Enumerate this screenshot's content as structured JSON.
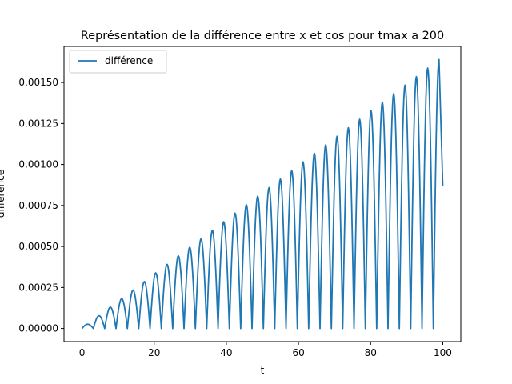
{
  "chart_data": {
    "type": "line",
    "title": "Représentation de la différence entre x et cos pour tmax a 200",
    "xlabel": "t",
    "ylabel": "différence",
    "xlim": [
      -5,
      105
    ],
    "ylim": [
      -8e-05,
      0.00172
    ],
    "xticks": [
      0,
      20,
      40,
      60,
      80,
      100
    ],
    "xtick_labels": [
      "0",
      "20",
      "40",
      "60",
      "80",
      "100"
    ],
    "yticks": [
      0,
      0.00025,
      0.0005,
      0.00075,
      0.001,
      0.00125,
      0.0015
    ],
    "ytick_labels": [
      "0.00000",
      "0.00025",
      "0.00050",
      "0.00075",
      "0.00100",
      "0.00125",
      "0.00150"
    ],
    "grid": false,
    "legend_position": "upper-left",
    "series": [
      {
        "name": "différence",
        "color": "#1f77b4",
        "x": [
          0,
          1.57,
          3.14,
          4.71,
          6.28,
          7.85,
          9.42,
          11.0,
          12.57,
          14.14,
          15.71,
          17.28,
          18.85,
          20.42,
          21.99,
          23.56,
          25.13,
          26.7,
          28.27,
          29.85,
          31.42,
          32.99,
          34.56,
          36.13,
          37.7,
          39.27,
          40.84,
          42.41,
          43.98,
          45.55,
          47.12,
          48.69,
          50.27,
          51.84,
          53.41,
          54.98,
          56.55,
          58.12,
          59.69,
          61.26,
          62.83,
          64.4,
          65.97,
          67.54,
          69.12,
          70.69,
          72.26,
          73.83,
          75.4,
          76.97,
          78.54,
          80.11,
          81.68,
          83.25,
          84.82,
          86.39,
          87.96,
          89.54,
          91.11,
          92.68,
          94.25,
          95.82,
          97.39,
          98.96,
          100
        ],
        "y": [
          0,
          2.6e-05,
          0,
          7.8e-05,
          0,
          0.00013,
          0,
          0.000182,
          0,
          0.000234,
          0,
          0.000286,
          0,
          0.000339,
          0,
          0.000391,
          0,
          0.000443,
          0,
          0.000495,
          0,
          0.000547,
          0,
          0.000599,
          0,
          0.000651,
          0,
          0.000703,
          0,
          0.000755,
          0,
          0.000807,
          0,
          0.000859,
          0,
          0.000911,
          0,
          0.000963,
          0,
          0.001016,
          0,
          0.001068,
          0,
          0.00112,
          0,
          0.001172,
          0,
          0.001224,
          0,
          0.001276,
          0,
          0.001328,
          0,
          0.00138,
          0,
          0.001432,
          0,
          0.001484,
          0,
          0.001536,
          0,
          0.001588,
          0,
          0.00164,
          0.00087
        ]
      }
    ]
  }
}
